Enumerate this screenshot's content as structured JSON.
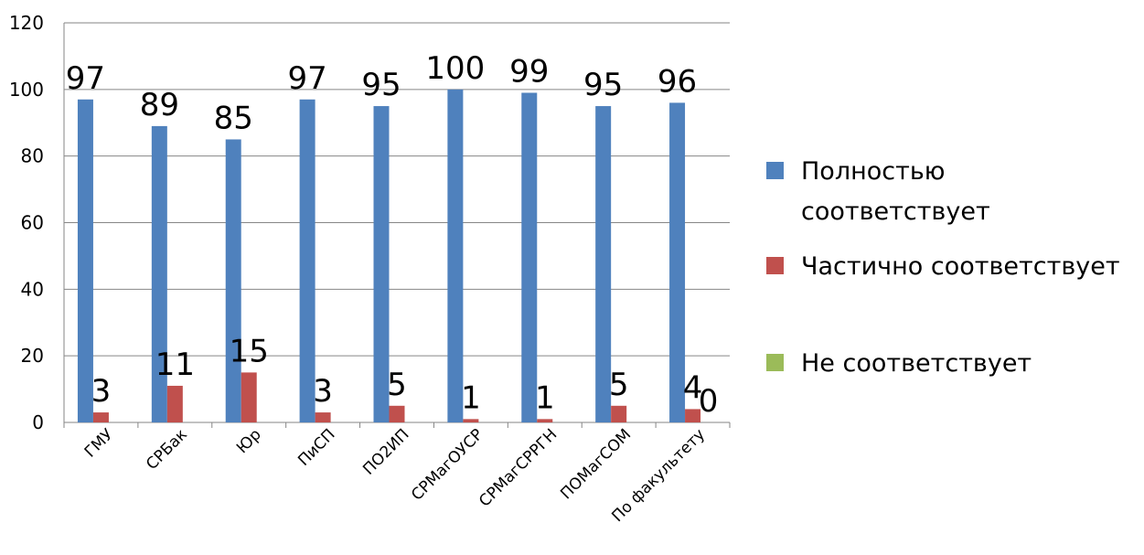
{
  "chart_data": {
    "type": "bar",
    "categories": [
      "ГМУ",
      "СРБак",
      "Юр",
      "ПиСП",
      "ПО2ИП",
      "СРМагОУСР",
      "СРМагСРРГН",
      "ПОМагСОМ",
      "По факультету"
    ],
    "series": [
      {
        "name": "Полностью соответствует",
        "color": "#4F81BD",
        "values": [
          97,
          89,
          85,
          97,
          95,
          100,
          99,
          95,
          96
        ]
      },
      {
        "name": "Частично соответствует",
        "color": "#C0504D",
        "values": [
          3,
          11,
          15,
          3,
          5,
          1,
          1,
          5,
          4
        ]
      },
      {
        "name": "Не соответствует",
        "color": "#9BBB59",
        "values": [
          null,
          null,
          null,
          null,
          null,
          null,
          null,
          null,
          0
        ]
      }
    ],
    "ylim": [
      0,
      120
    ],
    "yticks": [
      0,
      20,
      40,
      60,
      80,
      100,
      120
    ],
    "grid": true,
    "legend_position": "right"
  }
}
